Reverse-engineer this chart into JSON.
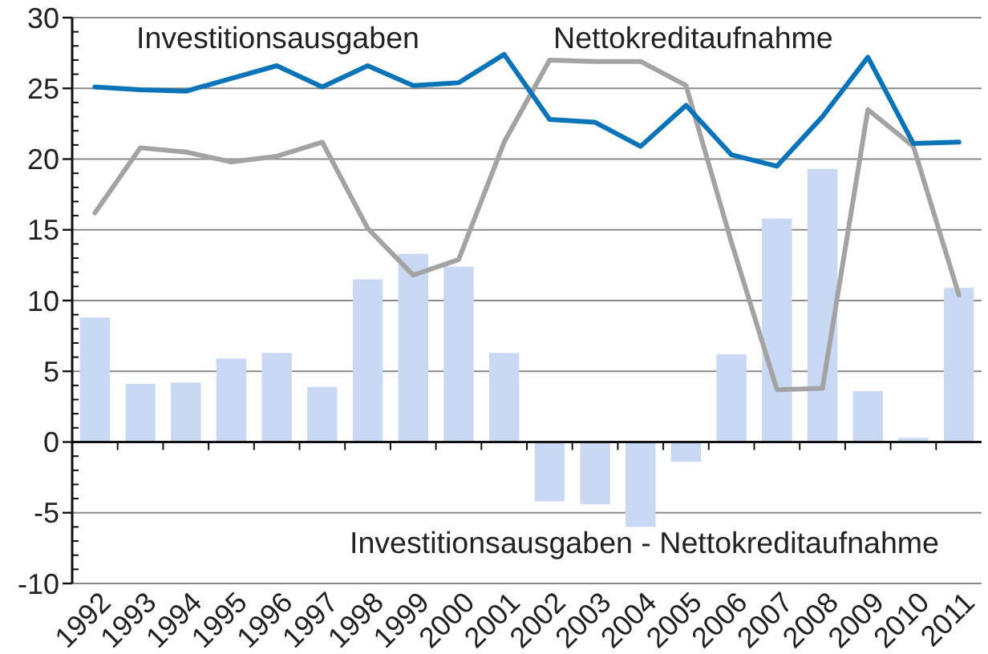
{
  "chart_data": {
    "type": "bar",
    "categories": [
      "1992",
      "1993",
      "1994",
      "1995",
      "1996",
      "1997",
      "1998",
      "1999",
      "2000",
      "2001",
      "2002",
      "2003",
      "2004",
      "2005",
      "2006",
      "2007",
      "2008",
      "2009",
      "2010",
      "2011"
    ],
    "series": [
      {
        "name": "Investitionsausgaben - Nettokreditaufnahme",
        "color": "#c9d9f3",
        "values": [
          8.8,
          4.1,
          4.2,
          5.9,
          6.3,
          3.9,
          11.5,
          13.3,
          12.4,
          6.3,
          -4.2,
          -4.4,
          -6.0,
          -1.4,
          6.2,
          15.8,
          19.3,
          3.6,
          0.3,
          10.9
        ]
      },
      {
        "name": "Nettokreditaufnahme",
        "type": "line",
        "color": "#a3a3a3",
        "values": [
          16.2,
          20.8,
          20.5,
          19.8,
          20.2,
          21.2,
          15.1,
          11.8,
          12.9,
          21.2,
          27.0,
          26.9,
          26.9,
          25.2,
          14.1,
          3.7,
          3.8,
          23.5,
          20.9,
          10.4
        ]
      },
      {
        "name": "Investitionsausgaben",
        "type": "line",
        "color": "#0b74b8",
        "values": [
          25.1,
          24.9,
          24.8,
          25.7,
          26.6,
          25.1,
          26.6,
          25.2,
          25.4,
          27.4,
          22.8,
          22.6,
          20.9,
          23.8,
          20.3,
          19.5,
          23.0,
          27.2,
          21.1,
          21.2
        ]
      }
    ],
    "ylim": [
      -10,
      30
    ],
    "yticks": [
      -10,
      {
        "value": -9,
        "label": null
      },
      {
        "value": -8,
        "label": null
      },
      {
        "value": -7,
        "label": null
      },
      {
        "value": -6,
        "label": null
      },
      -5,
      {
        "value": -4,
        "label": null
      },
      {
        "value": -3,
        "label": null
      },
      {
        "value": -2,
        "label": null
      },
      {
        "value": -1,
        "label": null
      },
      0,
      {
        "value": 1,
        "label": null
      },
      {
        "value": 2,
        "label": null
      },
      {
        "value": 3,
        "label": null
      },
      {
        "value": 4,
        "label": null
      },
      5,
      {
        "value": 6,
        "label": null
      },
      {
        "value": 7,
        "label": null
      },
      {
        "value": 8,
        "label": null
      },
      {
        "value": 9,
        "label": null
      },
      10,
      {
        "value": 11,
        "label": null
      },
      {
        "value": 12,
        "label": null
      },
      {
        "value": 13,
        "label": null
      },
      {
        "value": 14,
        "label": null
      },
      15,
      {
        "value": 16,
        "label": null
      },
      {
        "value": 17,
        "label": null
      },
      {
        "value": 18,
        "label": null
      },
      {
        "value": 19,
        "label": null
      },
      20,
      {
        "value": 21,
        "label": null
      },
      {
        "value": 22,
        "label": null
      },
      {
        "value": 23,
        "label": null
      },
      {
        "value": 24,
        "label": null
      },
      25,
      {
        "value": 26,
        "label": null
      },
      {
        "value": 27,
        "label": null
      },
      {
        "value": 28,
        "label": null
      },
      {
        "value": 29,
        "label": null
      },
      30
    ],
    "grid": "y",
    "line_style": "solid"
  }
}
